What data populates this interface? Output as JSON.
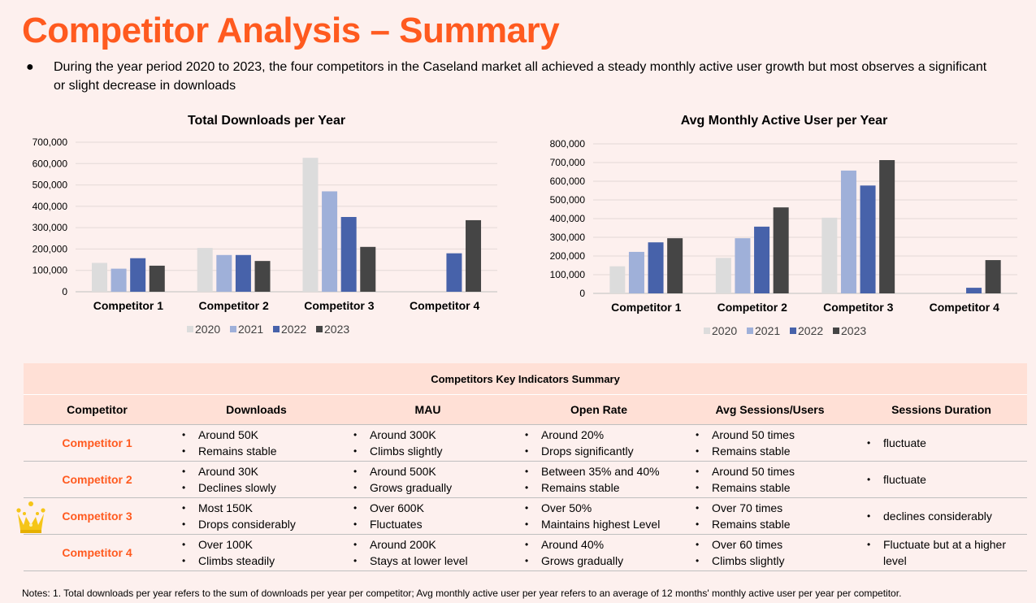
{
  "page": {
    "title": "Competitor Analysis – Summary",
    "bullet": "During the year period 2020 to 2023, the four competitors in the Caseland market all achieved a steady monthly active user growth but most observes a significant or slight decrease in downloads",
    "accent_color": "#ff5a1f",
    "notes": "Notes: 1. Total downloads per year refers to the sum of downloads per year per competitor; Avg monthly active user per year refers to an average of 12 months' monthly active user per year per competitor."
  },
  "chart_data": [
    {
      "type": "bar",
      "title": "Total Downloads per Year",
      "categories": [
        "Competitor 1",
        "Competitor 2",
        "Competitor 3",
        "Competitor 4"
      ],
      "series": [
        {
          "name": "2020",
          "color": "#dcdcdc",
          "values": [
            135000,
            205000,
            627000,
            0
          ]
        },
        {
          "name": "2021",
          "color": "#9fb0d9",
          "values": [
            108000,
            172000,
            470000,
            0
          ]
        },
        {
          "name": "2022",
          "color": "#4762aa",
          "values": [
            157000,
            172000,
            350000,
            180000
          ]
        },
        {
          "name": "2023",
          "color": "#454545",
          "values": [
            122000,
            144000,
            210000,
            335000
          ]
        }
      ],
      "yticks": [
        "0",
        "100,000",
        "200,000",
        "300,000",
        "400,000",
        "500,000",
        "600,000",
        "700,000"
      ],
      "ylim": [
        0,
        700000
      ],
      "grid": true,
      "legend": "bottom"
    },
    {
      "type": "bar",
      "title": "Avg Monthly Active User per Year",
      "categories": [
        "Competitor 1",
        "Competitor 2",
        "Competitor 3",
        "Competitor 4"
      ],
      "series": [
        {
          "name": "2020",
          "color": "#dcdcdc",
          "values": [
            145000,
            190000,
            405000,
            0
          ]
        },
        {
          "name": "2021",
          "color": "#9fb0d9",
          "values": [
            222000,
            295000,
            657000,
            0
          ]
        },
        {
          "name": "2022",
          "color": "#4762aa",
          "values": [
            273000,
            357000,
            577000,
            30000
          ]
        },
        {
          "name": "2023",
          "color": "#454545",
          "values": [
            295000,
            460000,
            713000,
            178000
          ]
        }
      ],
      "yticks": [
        "0",
        "100,000",
        "200,000",
        "300,000",
        "400,000",
        "500,000",
        "600,000",
        "700,000",
        "800,000"
      ],
      "ylim": [
        0,
        800000
      ],
      "grid": true,
      "legend": "bottom"
    }
  ],
  "table": {
    "title": "Competitors Key Indicators Summary",
    "headers": [
      "Competitor",
      "Downloads",
      "MAU",
      "Open Rate",
      "Avg Sessions/Users",
      "Sessions Duration"
    ],
    "rows": [
      {
        "competitor": "Competitor 1",
        "downloads": [
          "Around 50K",
          "Remains stable"
        ],
        "mau": [
          "Around 300K",
          "Climbs slightly"
        ],
        "open_rate": [
          "Around 20%",
          "Drops significantly"
        ],
        "sessions": [
          "Around 50 times",
          "Remains stable"
        ],
        "duration": [
          "fluctuate"
        ]
      },
      {
        "competitor": "Competitor 2",
        "downloads": [
          "Around 30K",
          "Declines slowly"
        ],
        "mau": [
          "Around 500K",
          "Grows gradually"
        ],
        "open_rate": [
          "Between 35% and 40%",
          "Remains stable"
        ],
        "sessions": [
          "Around 50 times",
          "Remains stable"
        ],
        "duration": [
          "fluctuate"
        ]
      },
      {
        "competitor": "Competitor 3",
        "downloads": [
          "Most 150K",
          "Drops considerably"
        ],
        "mau": [
          "Over 600K",
          "Fluctuates"
        ],
        "open_rate": [
          "Over 50%",
          "Maintains highest Level"
        ],
        "sessions": [
          "Over 70 times",
          "Remains stable"
        ],
        "duration": [
          "declines considerably"
        ],
        "crown_icon": "crown-icon"
      },
      {
        "competitor": "Competitor 4",
        "downloads": [
          "Over 100K",
          "Climbs steadily"
        ],
        "mau": [
          "Around 200K",
          "Stays at lower level"
        ],
        "open_rate": [
          "Around 40%",
          "Grows gradually"
        ],
        "sessions": [
          "Over 60 times",
          "Climbs slightly"
        ],
        "duration": [
          "Fluctuate but at a higher level"
        ]
      }
    ]
  }
}
